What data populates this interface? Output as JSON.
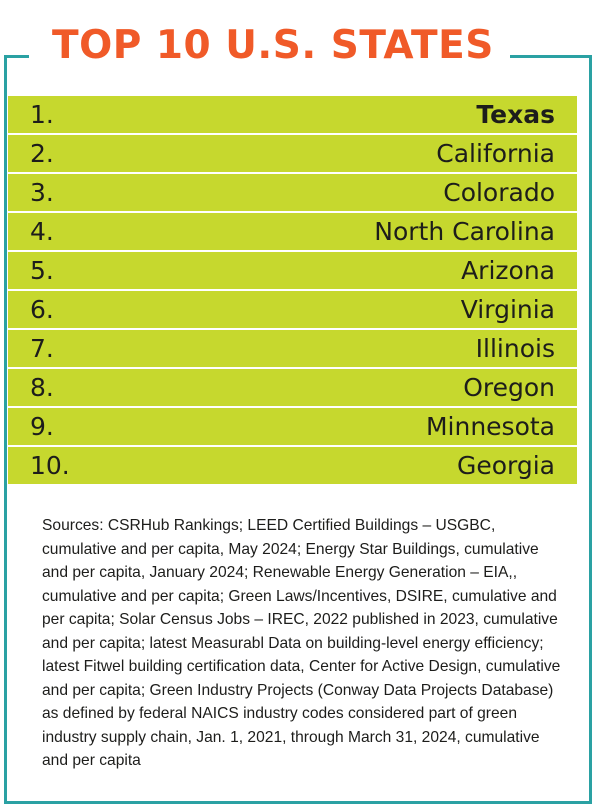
{
  "title": "TOP 10 U.S. STATES",
  "colors": {
    "accent_title": "#f05a28",
    "row_fill": "#c6d82e",
    "frame": "#2aa1a3"
  },
  "rankings": [
    {
      "rank": "1.",
      "state": "Texas"
    },
    {
      "rank": "2.",
      "state": "California"
    },
    {
      "rank": "3.",
      "state": "Colorado"
    },
    {
      "rank": "4.",
      "state": "North Carolina"
    },
    {
      "rank": "5.",
      "state": "Arizona"
    },
    {
      "rank": "6.",
      "state": "Virginia"
    },
    {
      "rank": "7.",
      "state": "Illinois"
    },
    {
      "rank": "8.",
      "state": "Oregon"
    },
    {
      "rank": "9.",
      "state": "Minnesota"
    },
    {
      "rank": "10.",
      "state": "Georgia"
    }
  ],
  "sources": "Sources: CSRHub Rankings; LEED Certified Buildings – USGBC, cumulative and per capita, May 2024; Energy Star Buildings, cumulative and per capita, January 2024; Renewable Energy Generation – EIA,, cumulative and per capita; Green Laws/Incentives, DSIRE, cumulative and per capita; Solar Census Jobs – IREC, 2022 published in 2023, cumulative and per capita; latest Measurabl Data on building-level energy efficiency; latest Fitwel building certification data, Center for Active Design, cumulative and per capita; Green Industry Projects (Conway Data Projects Database) as defined by federal NAICS industry codes considered part of green industry supply chain, Jan. 1, 2021, through March 31, 2024, cumulative and per capita"
}
